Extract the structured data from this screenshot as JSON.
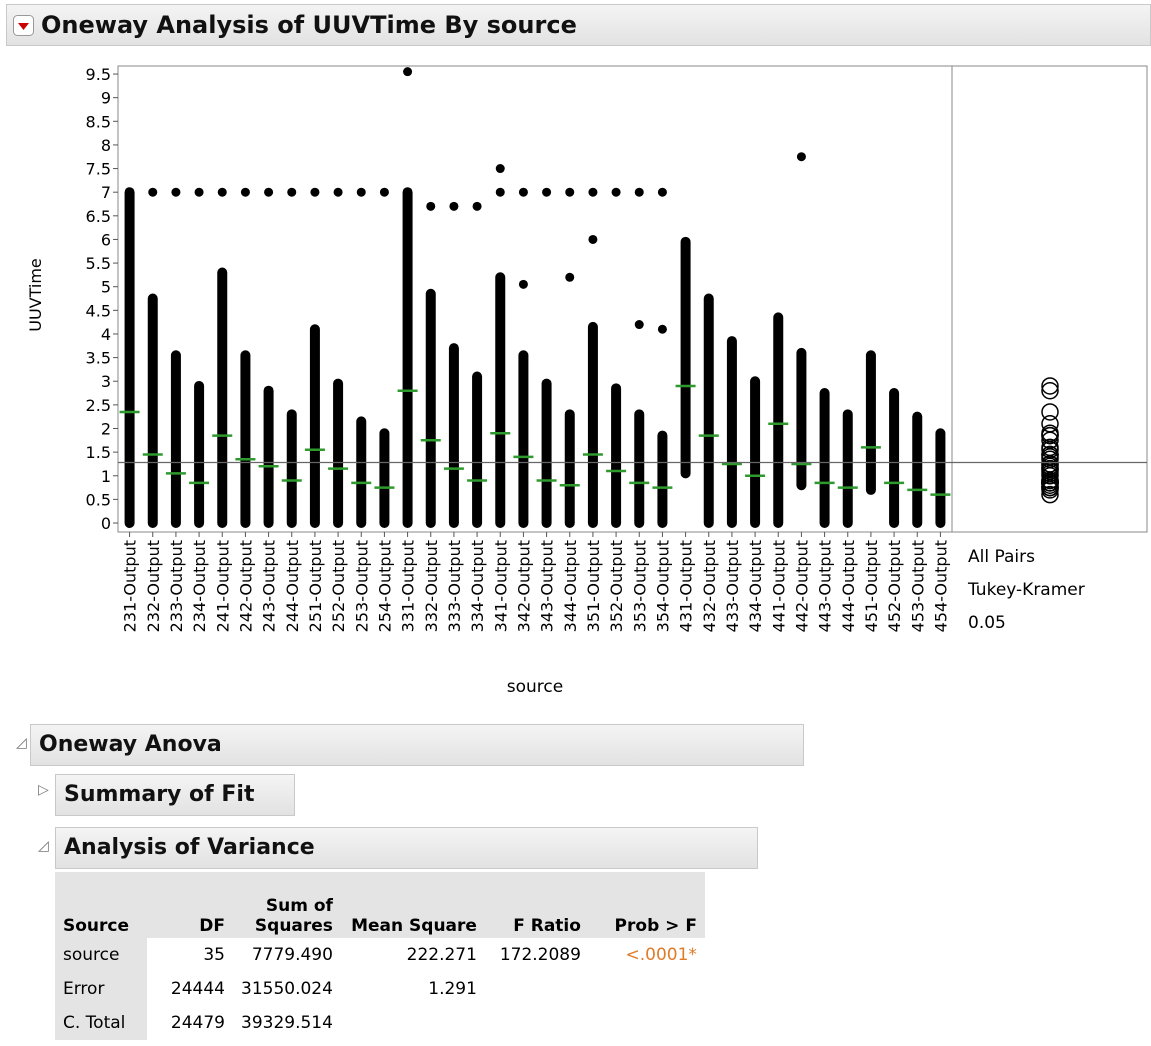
{
  "header": {
    "title": "Oneway Analysis of UUVTime By source"
  },
  "chart_data": {
    "type": "strip",
    "y_label": "UUVTime",
    "x_label": "source",
    "categories": [
      "231-Output",
      "232-Output",
      "233-Output",
      "234-Output",
      "241-Output",
      "242-Output",
      "243-Output",
      "244-Output",
      "251-Output",
      "252-Output",
      "253-Output",
      "254-Output",
      "331-Output",
      "332-Output",
      "333-Output",
      "334-Output",
      "341-Output",
      "342-Output",
      "343-Output",
      "344-Output",
      "351-Output",
      "352-Output",
      "353-Output",
      "354-Output",
      "431-Output",
      "432-Output",
      "433-Output",
      "434-Output",
      "441-Output",
      "442-Output",
      "443-Output",
      "444-Output",
      "451-Output",
      "452-Output",
      "453-Output",
      "454-Output"
    ],
    "low": [
      0,
      0,
      0,
      0,
      0,
      0,
      0,
      0,
      0,
      0,
      0,
      0,
      0,
      0,
      0,
      0,
      0,
      0,
      0,
      0,
      0,
      0,
      0,
      0,
      1.05,
      0,
      0,
      0,
      0,
      0.8,
      0,
      0,
      0.7,
      0,
      0,
      0
    ],
    "high": [
      7,
      4.75,
      3.55,
      2.9,
      5.3,
      3.55,
      2.8,
      2.3,
      4.1,
      2.95,
      2.15,
      1.9,
      7,
      4.85,
      3.7,
      3.1,
      5.2,
      3.55,
      2.95,
      2.3,
      4.15,
      2.85,
      2.3,
      1.85,
      5.95,
      4.75,
      3.85,
      3.0,
      4.35,
      3.6,
      2.75,
      2.3,
      3.55,
      2.75,
      2.25,
      1.9
    ],
    "means": [
      2.35,
      1.45,
      1.05,
      0.85,
      1.85,
      1.35,
      1.2,
      0.9,
      1.55,
      1.15,
      0.85,
      0.75,
      2.8,
      1.75,
      1.15,
      0.9,
      1.9,
      1.4,
      0.9,
      0.8,
      1.45,
      1.1,
      0.85,
      0.75,
      2.9,
      1.85,
      1.25,
      1.0,
      2.1,
      1.25,
      0.85,
      0.75,
      1.6,
      0.85,
      0.7,
      0.6
    ],
    "outliers": [
      [],
      [
        7
      ],
      [
        7
      ],
      [
        7
      ],
      [
        7
      ],
      [
        7
      ],
      [
        7
      ],
      [
        7
      ],
      [
        7
      ],
      [
        7
      ],
      [
        7
      ],
      [
        7
      ],
      [
        9.55
      ],
      [
        6.7
      ],
      [
        6.7
      ],
      [
        6.7
      ],
      [
        7,
        7.5
      ],
      [
        5.05,
        7
      ],
      [
        7
      ],
      [
        5.2,
        7
      ],
      [
        6,
        7
      ],
      [
        7
      ],
      [
        4.2,
        7
      ],
      [
        4.1,
        7
      ],
      [],
      [],
      [],
      [],
      [],
      [
        7.75
      ],
      [],
      [],
      [],
      [],
      [],
      []
    ],
    "grand_mean": 1.28,
    "ylim": [
      -0.19,
      9.67
    ],
    "yticks": [
      0,
      0.5,
      1,
      1.5,
      2,
      2.5,
      3,
      3.5,
      4,
      4.5,
      5,
      5.5,
      6,
      6.5,
      7,
      7.5,
      8,
      8.5,
      9,
      9.5
    ],
    "mean_color": "#2e9a2e",
    "point_color": "#000000",
    "comparison_labels": [
      "All Pairs",
      "Tukey-Kramer",
      "0.05"
    ]
  },
  "anova": {
    "title": "Oneway Anova",
    "sections": [
      "Summary of Fit",
      "Analysis of Variance"
    ],
    "table": {
      "columns": [
        "Source",
        "DF",
        "Sum of Squares",
        "Mean Square",
        "F Ratio",
        "Prob > F"
      ],
      "rows": [
        [
          "source",
          "35",
          "7779.490",
          "222.271",
          "172.2089",
          "<.0001*"
        ],
        [
          "Error",
          "24444",
          "31550.024",
          "1.291",
          null,
          null
        ],
        [
          "C. Total",
          "24479",
          "39329.514",
          null,
          null,
          null
        ]
      ]
    }
  }
}
